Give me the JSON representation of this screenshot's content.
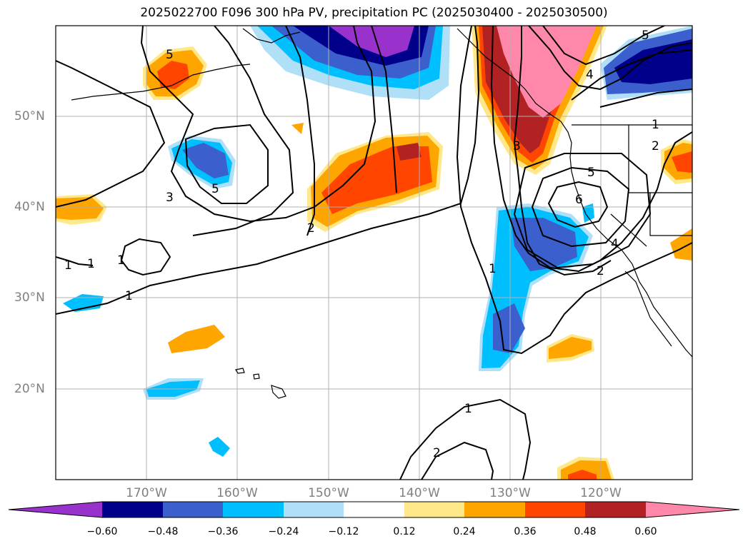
{
  "title": "2025022700 F096 300 hPa PV, precipitation PC (2025030400 - 2025030500)",
  "lat_labels": [
    "50°N",
    "40°N",
    "30°N",
    "20°N"
  ],
  "lon_labels": [
    "170°W",
    "160°W",
    "150°W",
    "140°W",
    "130°W",
    "120°W"
  ],
  "contour_labels": [
    "5",
    "5",
    "3",
    "2",
    "1",
    "1",
    "1",
    "5",
    "6",
    "4",
    "3",
    "2",
    "1",
    "1",
    "2",
    "4",
    "5",
    "1",
    "1",
    "2"
  ],
  "colorbar": {
    "colors": [
      "#9932cc",
      "#00008b",
      "#3b5fcd",
      "#00bfff",
      "#b0e0f8",
      "#ffffff",
      "#ffe88a",
      "#ffa500",
      "#ff4500",
      "#b22222",
      "#ff88aa"
    ],
    "ticks": [
      "−0.60",
      "−0.48",
      "−0.36",
      "−0.24",
      "−0.12",
      "0.12",
      "0.24",
      "0.36",
      "0.48",
      "0.60"
    ]
  }
}
